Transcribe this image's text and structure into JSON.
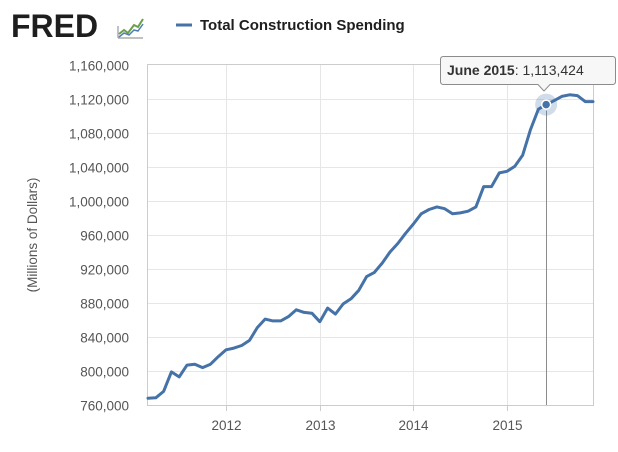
{
  "header": {
    "logo_text": "FRED",
    "legend_label": "Total Construction Spending"
  },
  "colors": {
    "series": "#4572a7",
    "grid": "#e6e6e6",
    "plot_border": "#cccccc",
    "tick_text": "#555555",
    "crosshair": "#8c8c8c"
  },
  "tooltip": {
    "date": "June 2015",
    "separator": ": ",
    "value": "1,113,424"
  },
  "chart_data": {
    "type": "line",
    "title": "",
    "xlabel": "",
    "ylabel": "(Millions of Dollars)",
    "ylim": [
      760000,
      1160000
    ],
    "yticks": [
      760000,
      800000,
      840000,
      880000,
      920000,
      960000,
      1000000,
      1040000,
      1080000,
      1120000,
      1160000
    ],
    "ytick_labels": [
      "760,000",
      "800,000",
      "840,000",
      "880,000",
      "920,000",
      "960,000",
      "1,000,000",
      "1,040,000",
      "1,080,000",
      "1,120,000",
      "1,160,000"
    ],
    "xlim": [
      "2011-03",
      "2015-12"
    ],
    "xticks": [
      "2012-01",
      "2013-01",
      "2014-01",
      "2015-01"
    ],
    "xtick_labels": [
      "2012",
      "2013",
      "2014",
      "2015"
    ],
    "highlight": {
      "x": "2015-06",
      "y": 1113424
    },
    "series": [
      {
        "name": "Total Construction Spending",
        "x": [
          "2011-03",
          "2011-04",
          "2011-05",
          "2011-06",
          "2011-07",
          "2011-08",
          "2011-09",
          "2011-10",
          "2011-11",
          "2011-12",
          "2012-01",
          "2012-02",
          "2012-03",
          "2012-04",
          "2012-05",
          "2012-06",
          "2012-07",
          "2012-08",
          "2012-09",
          "2012-10",
          "2012-11",
          "2012-12",
          "2013-01",
          "2013-02",
          "2013-03",
          "2013-04",
          "2013-05",
          "2013-06",
          "2013-07",
          "2013-08",
          "2013-09",
          "2013-10",
          "2013-11",
          "2013-12",
          "2014-01",
          "2014-02",
          "2014-03",
          "2014-04",
          "2014-05",
          "2014-06",
          "2014-07",
          "2014-08",
          "2014-09",
          "2014-10",
          "2014-11",
          "2014-12",
          "2015-01",
          "2015-02",
          "2015-03",
          "2015-04",
          "2015-05",
          "2015-06",
          "2015-07",
          "2015-08",
          "2015-09",
          "2015-10",
          "2015-11",
          "2015-12"
        ],
        "values": [
          768000,
          768500,
          776000,
          799000,
          793000,
          807000,
          808000,
          804000,
          808000,
          817000,
          825000,
          827000,
          830000,
          836000,
          851000,
          861000,
          859000,
          859000,
          864000,
          872000,
          869000,
          868000,
          858000,
          874000,
          867000,
          879000,
          885000,
          895000,
          911000,
          916000,
          927000,
          940000,
          950000,
          962000,
          973000,
          985000,
          990000,
          993000,
          991000,
          985000,
          986000,
          988000,
          993000,
          1017000,
          1017000,
          1033000,
          1035000,
          1041000,
          1054000,
          1084000,
          1108000,
          1113424,
          1118000,
          1123000,
          1125000,
          1124000,
          1117000,
          1117000
        ]
      }
    ]
  }
}
